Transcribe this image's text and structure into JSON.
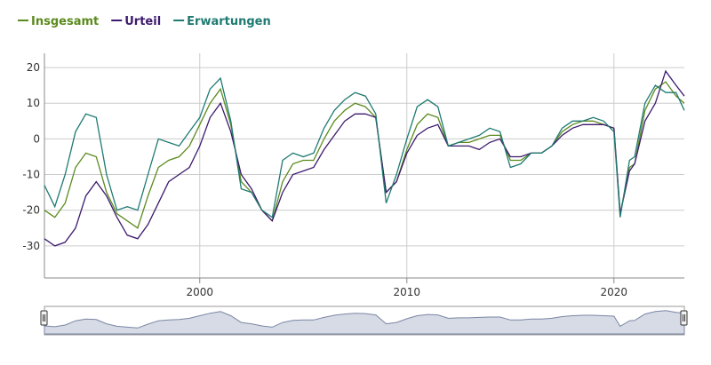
{
  "chart_data": {
    "type": "line",
    "x": [
      1992.5,
      1993,
      1993.5,
      1994,
      1994.5,
      1995,
      1995.5,
      1996,
      1996.5,
      1997,
      1997.5,
      1998,
      1998.5,
      1999,
      1999.5,
      2000,
      2000.5,
      2001,
      2001.5,
      2002,
      2002.5,
      2003,
      2003.5,
      2004,
      2004.5,
      2005,
      2005.5,
      2006,
      2006.5,
      2007,
      2007.5,
      2008,
      2008.5,
      2009,
      2009.5,
      2010,
      2010.5,
      2011,
      2011.5,
      2012,
      2012.5,
      2013,
      2013.5,
      2014,
      2014.5,
      2015,
      2015.5,
      2016,
      2016.5,
      2017,
      2017.5,
      2018,
      2018.5,
      2019,
      2019.5,
      2020,
      2020.3,
      2020.75,
      2021,
      2021.5,
      2022,
      2022.5,
      2023,
      2023.4
    ],
    "series": [
      {
        "name": "Insgesamt",
        "color": "#5b8a1e",
        "values": [
          -20,
          -22,
          -18,
          -8,
          -4,
          -5,
          -15,
          -21,
          -23,
          -25,
          -16,
          -8,
          -6,
          -5,
          -2,
          4,
          10,
          14,
          4,
          -12,
          -15,
          -20,
          -23,
          -12,
          -7,
          -6,
          -6,
          0,
          5,
          8,
          10,
          9,
          6,
          -15,
          -12,
          -3,
          4,
          7,
          6,
          -2,
          -1,
          -1,
          0,
          1,
          1,
          -6,
          -6,
          -4,
          -4,
          -2,
          2,
          4,
          5,
          5,
          4,
          3,
          -21,
          -8,
          -7,
          8,
          14,
          16,
          12,
          10
        ]
      },
      {
        "name": "Urteil",
        "color": "#3d1a6e",
        "values": [
          -28,
          -30,
          -29,
          -25,
          -16,
          -12,
          -16,
          -22,
          -27,
          -28,
          -24,
          -18,
          -12,
          -10,
          -8,
          -2,
          6,
          10,
          2,
          -10,
          -14,
          -20,
          -23,
          -15,
          -10,
          -9,
          -8,
          -3,
          1,
          5,
          7,
          7,
          6,
          -15,
          -12,
          -4,
          1,
          3,
          4,
          -2,
          -2,
          -2,
          -3,
          -1,
          0,
          -5,
          -5,
          -4,
          -4,
          -2,
          1,
          3,
          4,
          4,
          4,
          3,
          -21,
          -9,
          -7,
          5,
          10,
          19,
          15,
          12
        ]
      },
      {
        "name": "Erwartungen",
        "color": "#1f7a72",
        "values": [
          -13,
          -19,
          -10,
          2,
          7,
          6,
          -10,
          -20,
          -19,
          -20,
          -10,
          0,
          -1,
          -2,
          2,
          6,
          14,
          17,
          5,
          -14,
          -15,
          -20,
          -22,
          -6,
          -4,
          -5,
          -4,
          3,
          8,
          11,
          13,
          12,
          7,
          -18,
          -10,
          0,
          9,
          11,
          9,
          -2,
          -1,
          0,
          1,
          3,
          2,
          -8,
          -7,
          -4,
          -4,
          -2,
          3,
          5,
          5,
          6,
          5,
          2,
          -22,
          -6,
          -5,
          10,
          15,
          13,
          13,
          8
        ]
      }
    ],
    "xlim": [
      1992.5,
      2023.4
    ],
    "xticks": [
      2000,
      2010,
      2020
    ],
    "ylim": [
      -39,
      24
    ],
    "yticks": [
      -30,
      -20,
      -10,
      0,
      10,
      20
    ],
    "grid": true,
    "legend": "top-left"
  }
}
